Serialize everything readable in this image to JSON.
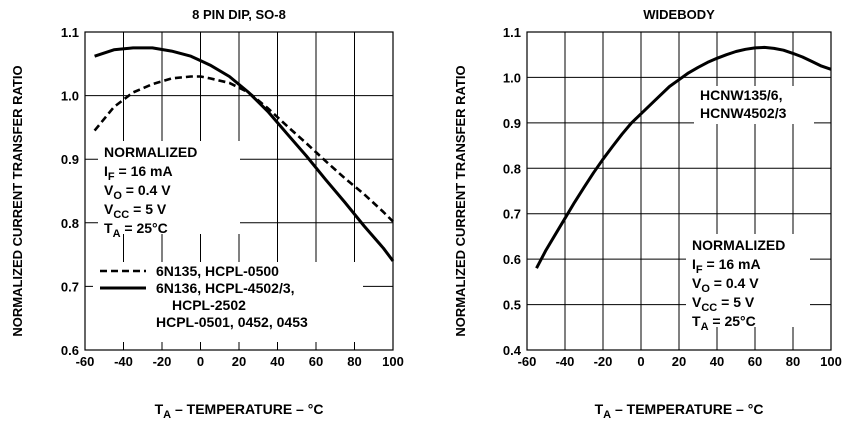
{
  "chart_data": [
    {
      "type": "line",
      "title": "8 PIN DIP, SO-8",
      "ylabel": "NORMALIZED CURRENT TRANSFER RATIO",
      "xlabel": {
        "main": "T",
        "sub": "A",
        "rest": " – TEMPERATURE – °C"
      },
      "xlim": [
        -60,
        100
      ],
      "ylim": [
        0.6,
        1.1
      ],
      "grid": true,
      "x_ticks": [
        "-60",
        "-40",
        "-20",
        "0",
        "20",
        "40",
        "60",
        "80",
        "100"
      ],
      "y_ticks": [
        "0.6",
        "0.7",
        "0.8",
        "0.9",
        "1.0",
        "1.1"
      ],
      "annotation": {
        "heading": "NORMALIZED",
        "lines": [
          {
            "main": "I",
            "sub": "F",
            "rest": " = 16 mA"
          },
          {
            "main": "V",
            "sub": "O",
            "rest": " = 0.4 V"
          },
          {
            "main": "V",
            "sub": "CC",
            "rest": " = 5 V"
          },
          {
            "main": "T",
            "sub": "A",
            "rest": " = 25°C"
          }
        ]
      },
      "legend": [
        {
          "lines": [
            "6N135, HCPL-0500"
          ],
          "style": "dashed"
        },
        {
          "lines": [
            "6N136, HCPL-4502/3,",
            "HCPL-2502",
            "HCPL-0501, 0452, 0453"
          ],
          "style": "solid"
        }
      ],
      "series": [
        {
          "style": "dashed",
          "x": [
            -55,
            -45,
            -35,
            -25,
            -15,
            -5,
            0,
            5,
            15,
            25,
            35,
            45,
            55,
            65,
            75,
            85,
            95,
            100
          ],
          "y": [
            0.945,
            0.982,
            1.005,
            1.018,
            1.027,
            1.03,
            1.03,
            1.027,
            1.02,
            1.005,
            0.98,
            0.952,
            0.925,
            0.897,
            0.87,
            0.845,
            0.817,
            0.802
          ]
        },
        {
          "style": "solid",
          "x": [
            -55,
            -45,
            -35,
            -25,
            -15,
            -5,
            0,
            5,
            15,
            25,
            35,
            45,
            55,
            65,
            75,
            85,
            95,
            100
          ],
          "y": [
            1.062,
            1.072,
            1.075,
            1.075,
            1.07,
            1.062,
            1.055,
            1.048,
            1.03,
            1.005,
            0.975,
            0.94,
            0.905,
            0.868,
            0.832,
            0.795,
            0.76,
            0.74
          ]
        }
      ]
    },
    {
      "type": "line",
      "title": "WIDEBODY",
      "ylabel": "NORMALIZED CURRENT TRANSFER RATIO",
      "xlabel": {
        "main": "T",
        "sub": "A",
        "rest": " – TEMPERATURE – °C"
      },
      "xlim": [
        -60,
        100
      ],
      "ylim": [
        0.4,
        1.1
      ],
      "grid": true,
      "x_ticks": [
        "-60",
        "-40",
        "-20",
        "0",
        "20",
        "40",
        "60",
        "80",
        "100"
      ],
      "y_ticks": [
        "0.4",
        "0.5",
        "0.6",
        "0.7",
        "0.8",
        "0.9",
        "1.0",
        "1.1"
      ],
      "series_label": [
        "HCNW135/6,",
        "HCNW4502/3"
      ],
      "annotation": {
        "heading": "NORMALIZED",
        "lines": [
          {
            "main": "I",
            "sub": "F",
            "rest": " = 16 mA"
          },
          {
            "main": "V",
            "sub": "O",
            "rest": " = 0.4 V"
          },
          {
            "main": "V",
            "sub": "CC",
            "rest": " = 5 V"
          },
          {
            "main": "T",
            "sub": "A",
            "rest": " = 25°C"
          }
        ]
      },
      "series": [
        {
          "style": "solid",
          "x": [
            -55,
            -50,
            -45,
            -40,
            -35,
            -30,
            -25,
            -20,
            -15,
            -10,
            -5,
            0,
            5,
            10,
            15,
            20,
            25,
            30,
            35,
            40,
            45,
            50,
            55,
            60,
            65,
            70,
            75,
            80,
            85,
            90,
            95,
            100
          ],
          "y": [
            0.58,
            0.62,
            0.655,
            0.69,
            0.725,
            0.758,
            0.79,
            0.82,
            0.848,
            0.875,
            0.9,
            0.92,
            0.94,
            0.96,
            0.98,
            0.995,
            1.01,
            1.022,
            1.033,
            1.042,
            1.05,
            1.057,
            1.062,
            1.065,
            1.066,
            1.064,
            1.06,
            1.053,
            1.045,
            1.035,
            1.025,
            1.018
          ]
        }
      ]
    }
  ]
}
